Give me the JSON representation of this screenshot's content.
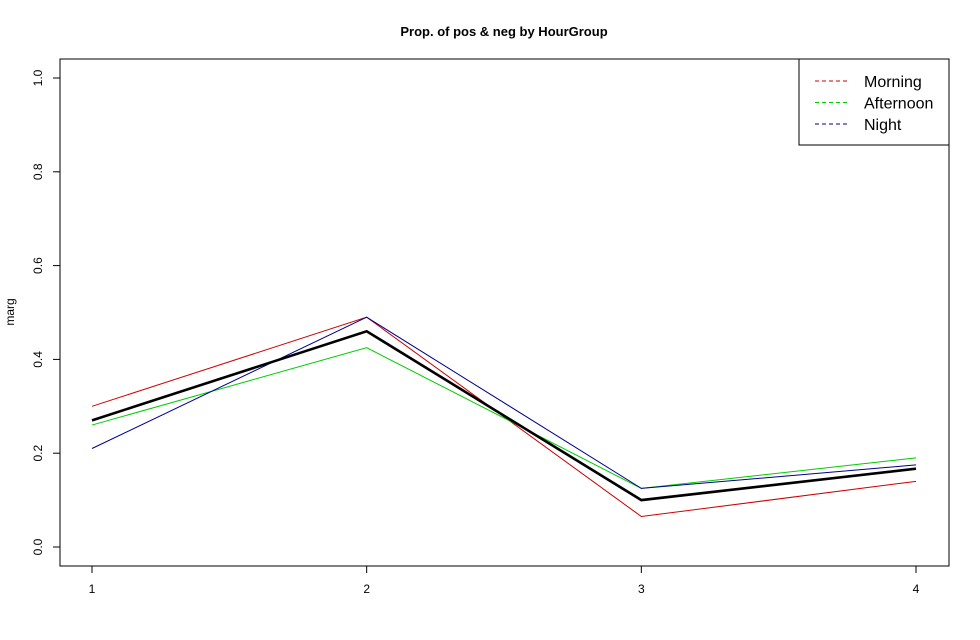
{
  "chart_data": {
    "type": "line",
    "title": "Prop. of pos & neg by HourGroup",
    "xlabel": "",
    "ylabel": "marg",
    "x": [
      1,
      2,
      3,
      4
    ],
    "x_tick_labels": [
      "1",
      "2",
      "3",
      "4"
    ],
    "y_tick_labels": [
      "0.0",
      "0.2",
      "0.4",
      "0.6",
      "0.8",
      "1.0"
    ],
    "y_ticks": [
      0.0,
      0.2,
      0.4,
      0.6,
      0.8,
      1.0
    ],
    "ylim": [
      0.0,
      1.0
    ],
    "grid": false,
    "legend_position": "top-right",
    "series": [
      {
        "name": "Morning",
        "values": [
          0.3,
          0.49,
          0.065,
          0.14
        ],
        "color": "#cc0000",
        "legend_line": "dashed"
      },
      {
        "name": "Afternoon",
        "values": [
          0.26,
          0.425,
          0.125,
          0.19
        ],
        "color": "#00cc00",
        "legend_line": "dashed"
      },
      {
        "name": "Night",
        "values": [
          0.21,
          0.49,
          0.125,
          0.175
        ],
        "color": "#00008b",
        "legend_line": "dashed"
      }
    ],
    "overall": {
      "values": [
        0.27,
        0.46,
        0.1,
        0.167
      ],
      "color": "#000000"
    }
  }
}
